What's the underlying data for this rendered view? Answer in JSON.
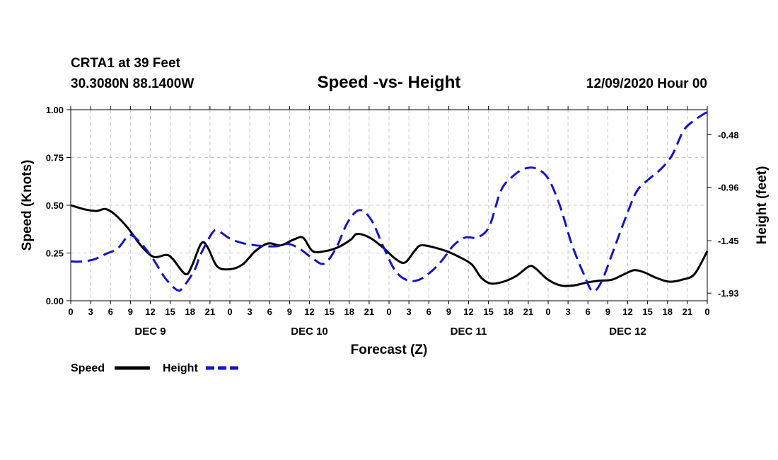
{
  "header": {
    "station": "CRTA1 at 39 Feet",
    "coords": "30.3080N 88.1400W",
    "title": "Speed -vs- Height",
    "date": "12/09/2020 Hour 00"
  },
  "chart_data": {
    "type": "line",
    "title": "Speed -vs- Height",
    "xlabel": "Forecast (Z)",
    "ylabel_left": "Speed (Knots)",
    "ylabel_right": "Height (feet)",
    "x_range_hours": [
      0,
      96
    ],
    "x_tick_step_hours": 3,
    "x_tick_labels": [
      "0",
      "3",
      "6",
      "9",
      "12",
      "15",
      "18",
      "21",
      "0",
      "3",
      "6",
      "9",
      "12",
      "15",
      "18",
      "21",
      "0",
      "3",
      "6",
      "9",
      "12",
      "15",
      "18",
      "21",
      "0",
      "3",
      "6",
      "9",
      "12",
      "15",
      "18",
      "21",
      "0"
    ],
    "day_labels": [
      {
        "label": "DEC 9",
        "hour": 12
      },
      {
        "label": "DEC 10",
        "hour": 36
      },
      {
        "label": "DEC 11",
        "hour": 60
      },
      {
        "label": "DEC 12",
        "hour": 84
      }
    ],
    "y_left": {
      "range": [
        0,
        1.0
      ],
      "ticks": [
        "0.00",
        "0.25",
        "0.50",
        "0.75",
        "1.00"
      ]
    },
    "y_right": {
      "range": [
        -2.0,
        -0.25
      ],
      "ticks": [
        -1.93,
        -1.45,
        -0.96,
        -0.48
      ],
      "tick_labels": [
        "-1.93",
        "-1.45",
        "-0.96",
        "-0.48"
      ]
    },
    "grid": true,
    "series": [
      {
        "name": "Speed",
        "axis": "left",
        "color": "#000000",
        "style": "solid",
        "points": [
          [
            0,
            0.5
          ],
          [
            2,
            0.48
          ],
          [
            4,
            0.47
          ],
          [
            5.5,
            0.48
          ],
          [
            7,
            0.45
          ],
          [
            9,
            0.38
          ],
          [
            11,
            0.29
          ],
          [
            13,
            0.23
          ],
          [
            15,
            0.24
          ],
          [
            16,
            0.22
          ],
          [
            18,
            0.14
          ],
          [
            19,
            0.18
          ],
          [
            20.5,
            0.3
          ],
          [
            21.5,
            0.28
          ],
          [
            23,
            0.18
          ],
          [
            25,
            0.165
          ],
          [
            27,
            0.19
          ],
          [
            29,
            0.26
          ],
          [
            31,
            0.3
          ],
          [
            33,
            0.29
          ],
          [
            35,
            0.32
          ],
          [
            36.5,
            0.33
          ],
          [
            38,
            0.26
          ],
          [
            40,
            0.26
          ],
          [
            42,
            0.28
          ],
          [
            44,
            0.32
          ],
          [
            45,
            0.35
          ],
          [
            47,
            0.33
          ],
          [
            49,
            0.28
          ],
          [
            51,
            0.22
          ],
          [
            52.5,
            0.2
          ],
          [
            54,
            0.26
          ],
          [
            55,
            0.29
          ],
          [
            57,
            0.28
          ],
          [
            59,
            0.26
          ],
          [
            61,
            0.23
          ],
          [
            63,
            0.19
          ],
          [
            64.5,
            0.12
          ],
          [
            66,
            0.09
          ],
          [
            68,
            0.1
          ],
          [
            70,
            0.13
          ],
          [
            72,
            0.18
          ],
          [
            73,
            0.17
          ],
          [
            75,
            0.11
          ],
          [
            77,
            0.08
          ],
          [
            79,
            0.08
          ],
          [
            81,
            0.095
          ],
          [
            83,
            0.105
          ],
          [
            85,
            0.11
          ],
          [
            87,
            0.14
          ],
          [
            88.5,
            0.16
          ],
          [
            90,
            0.15
          ],
          [
            92,
            0.12
          ],
          [
            94,
            0.1
          ],
          [
            96,
            0.11
          ],
          [
            98,
            0.14
          ],
          [
            100,
            0.26
          ]
        ],
        "display_hours_scale": 0.96
      },
      {
        "name": "Height",
        "axis": "right",
        "color": "#1414c8",
        "style": "dashed",
        "points": [
          [
            0,
            -1.64
          ],
          [
            2,
            -1.64
          ],
          [
            4,
            -1.62
          ],
          [
            6,
            -1.57
          ],
          [
            8,
            -1.52
          ],
          [
            10,
            -1.4
          ],
          [
            12,
            -1.48
          ],
          [
            14,
            -1.62
          ],
          [
            16,
            -1.79
          ],
          [
            18,
            -1.9
          ],
          [
            19,
            -1.88
          ],
          [
            21,
            -1.72
          ],
          [
            22,
            -1.58
          ],
          [
            24,
            -1.38
          ],
          [
            25,
            -1.36
          ],
          [
            27,
            -1.43
          ],
          [
            29,
            -1.47
          ],
          [
            31,
            -1.49
          ],
          [
            33,
            -1.5
          ],
          [
            35,
            -1.5
          ],
          [
            37,
            -1.48
          ],
          [
            39,
            -1.53
          ],
          [
            41,
            -1.61
          ],
          [
            43,
            -1.66
          ],
          [
            45,
            -1.52
          ],
          [
            47,
            -1.28
          ],
          [
            49,
            -1.17
          ],
          [
            51,
            -1.26
          ],
          [
            53,
            -1.5
          ],
          [
            55,
            -1.72
          ],
          [
            57,
            -1.81
          ],
          [
            59,
            -1.81
          ],
          [
            61,
            -1.74
          ],
          [
            63,
            -1.63
          ],
          [
            65,
            -1.49
          ],
          [
            67,
            -1.42
          ],
          [
            69,
            -1.42
          ],
          [
            71,
            -1.32
          ],
          [
            73,
            -0.99
          ],
          [
            75,
            -0.86
          ],
          [
            77,
            -0.79
          ],
          [
            79,
            -0.79
          ],
          [
            81,
            -0.88
          ],
          [
            83,
            -1.13
          ],
          [
            85,
            -1.48
          ],
          [
            87,
            -1.75
          ],
          [
            88.5,
            -1.91
          ],
          [
            90,
            -1.83
          ],
          [
            92,
            -1.55
          ],
          [
            94,
            -1.26
          ],
          [
            96,
            -1.0
          ],
          [
            98,
            -0.89
          ],
          [
            100,
            -0.8
          ],
          [
            102,
            -0.67
          ],
          [
            104,
            -0.44
          ],
          [
            106,
            -0.34
          ],
          [
            108,
            -0.27
          ]
        ],
        "display_hours_scale": 0.8889
      }
    ]
  },
  "legend": {
    "items": [
      {
        "label": "Speed",
        "color": "#000000",
        "style": "solid"
      },
      {
        "label": "Height",
        "color": "#1414c8",
        "style": "dashed"
      }
    ]
  }
}
